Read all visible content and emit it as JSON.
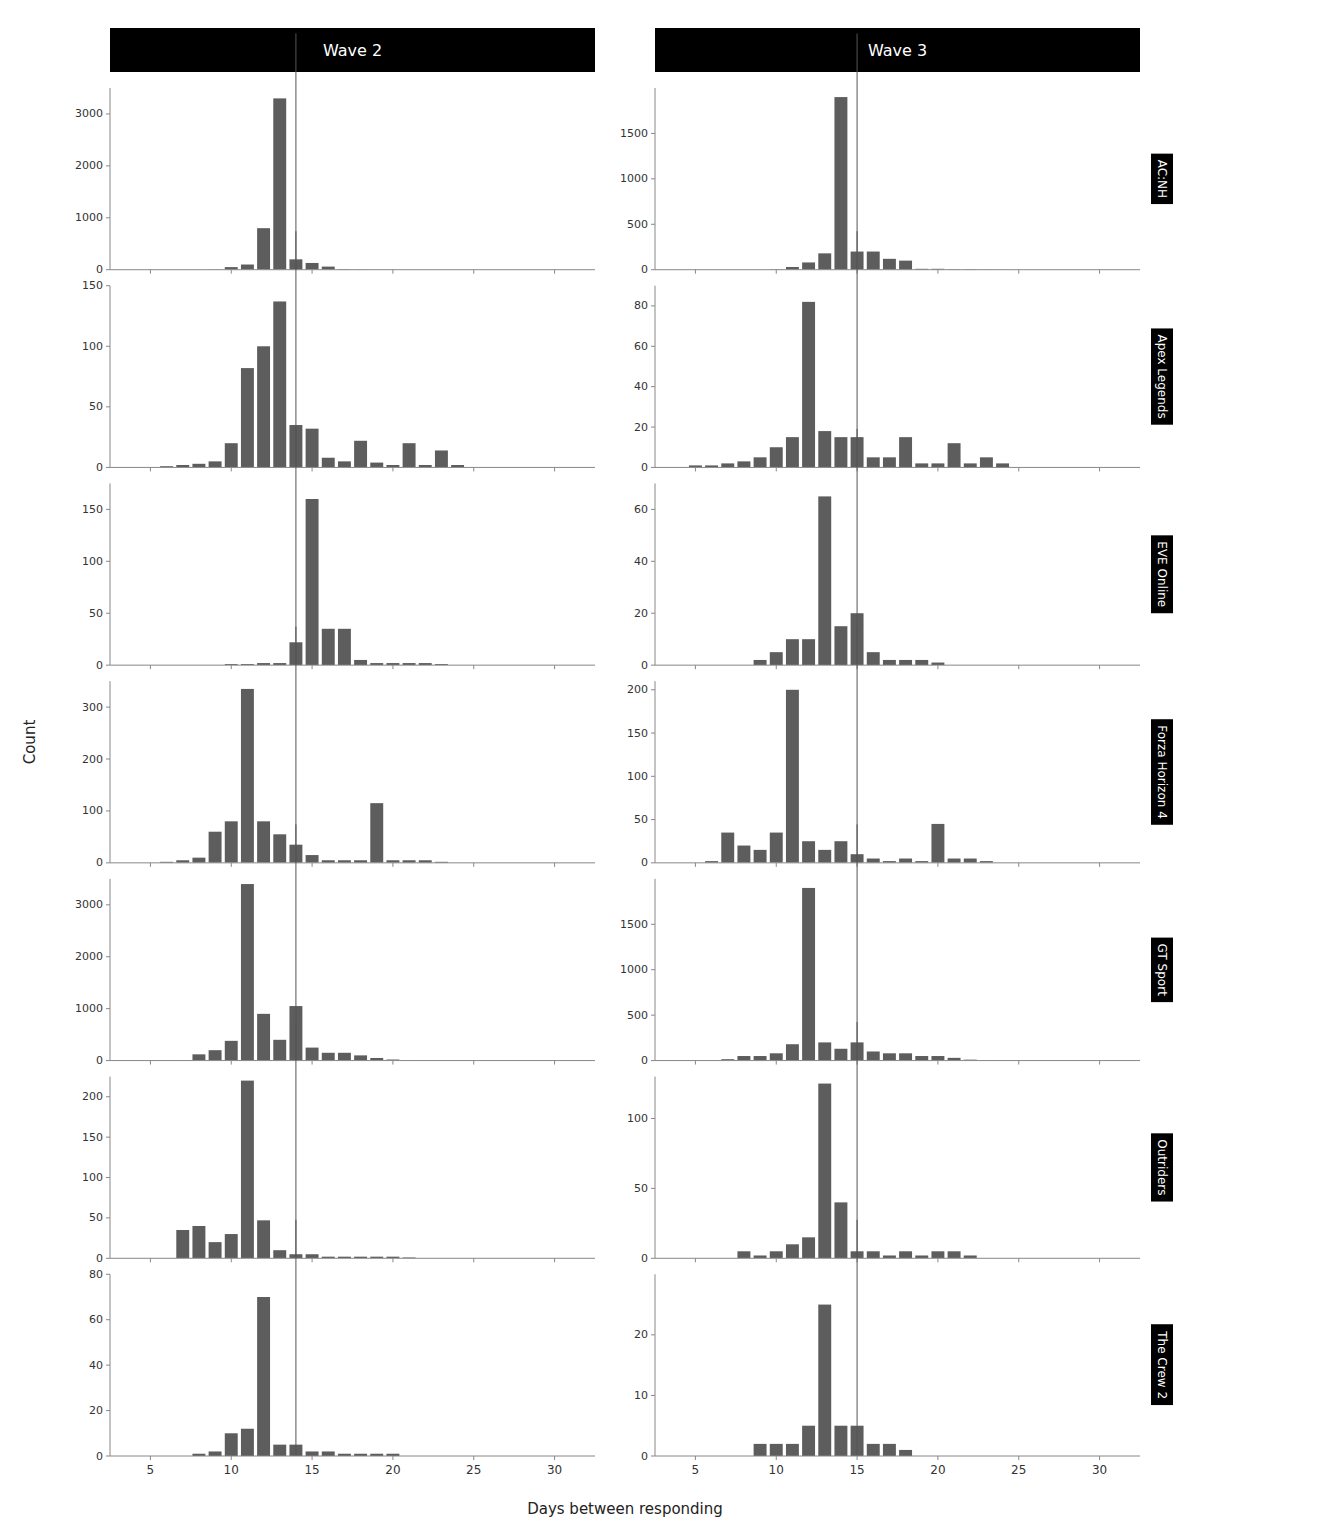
{
  "chart_data": [
    {
      "type": "bar",
      "title": "Wave 2",
      "xlabel": "Days between responding",
      "ylabel": "Count",
      "color": "#5d5d5d",
      "x": [
        9,
        10,
        11,
        12,
        13,
        14,
        15,
        16,
        17,
        18,
        19,
        20,
        21
      ],
      "values": [
        5,
        50,
        100,
        800,
        3300,
        200,
        130,
        60,
        10,
        5,
        2,
        1,
        0
      ],
      "xlim": [
        2.5,
        32.5
      ],
      "xticks": [
        5,
        10,
        15,
        20,
        25,
        30
      ],
      "ylim": [
        0,
        3500
      ],
      "yticks": [
        0,
        1000,
        2000,
        3000
      ],
      "vline": 14,
      "tick_labels": "y"
    },
    {
      "type": "bar",
      "title": "Wave 3",
      "annotations": [
        {
          "text": "AC:NH"
        }
      ],
      "color": "#5d5d5d",
      "x": [
        10,
        11,
        12,
        13,
        14,
        15,
        16,
        17,
        18,
        19,
        20,
        21,
        22,
        23,
        24,
        25
      ],
      "values": [
        5,
        30,
        80,
        180,
        1900,
        200,
        200,
        120,
        100,
        10,
        10,
        5,
        5,
        2,
        1,
        0
      ],
      "xlim": [
        2.5,
        32.5
      ],
      "xticks": [
        5,
        10,
        15,
        20,
        25,
        30
      ],
      "ylim": [
        0,
        2000
      ],
      "yticks": [
        0,
        500,
        1000,
        1500
      ],
      "vline": 15,
      "tick_labels": "y"
    },
    {
      "type": "bar",
      "color": "#5d5d5d",
      "x": [
        6,
        7,
        8,
        9,
        10,
        11,
        12,
        13,
        14,
        15,
        16,
        17,
        18,
        19,
        20,
        21,
        22,
        23,
        24,
        25,
        26
      ],
      "values": [
        1,
        2,
        3,
        5,
        20,
        82,
        100,
        137,
        35,
        32,
        8,
        5,
        22,
        4,
        2,
        20,
        2,
        14,
        2,
        0,
        0
      ],
      "xlim": [
        2.5,
        32.5
      ],
      "xticks": [
        5,
        10,
        15,
        20,
        25,
        30
      ],
      "ylim": [
        0,
        150
      ],
      "yticks": [
        0,
        50,
        100,
        150
      ],
      "vline": 14,
      "tick_labels": "y"
    },
    {
      "type": "bar",
      "annotations": [
        {
          "text": "Apex Legends"
        }
      ],
      "color": "#5d5d5d",
      "x": [
        5,
        6,
        7,
        8,
        9,
        10,
        11,
        12,
        13,
        14,
        15,
        16,
        17,
        18,
        19,
        20,
        21,
        22,
        23,
        24,
        25
      ],
      "values": [
        1,
        1,
        2,
        3,
        5,
        10,
        15,
        82,
        18,
        15,
        15,
        5,
        5,
        15,
        2,
        2,
        12,
        2,
        5,
        2,
        0
      ],
      "xlim": [
        2.5,
        32.5
      ],
      "xticks": [
        5,
        10,
        15,
        20,
        25,
        30
      ],
      "ylim": [
        0,
        90
      ],
      "yticks": [
        0,
        20,
        40,
        60,
        80
      ],
      "vline": 15,
      "tick_labels": "y"
    },
    {
      "type": "bar",
      "color": "#5d5d5d",
      "x": [
        10,
        11,
        12,
        13,
        14,
        15,
        16,
        17,
        18,
        19,
        20,
        21,
        22,
        23
      ],
      "values": [
        1,
        1,
        2,
        2,
        22,
        160,
        35,
        35,
        5,
        2,
        2,
        2,
        2,
        1
      ],
      "xlim": [
        2.5,
        32.5
      ],
      "xticks": [
        5,
        10,
        15,
        20,
        25,
        30
      ],
      "ylim": [
        0,
        175
      ],
      "yticks": [
        0,
        50,
        100,
        150
      ],
      "vline": 14,
      "tick_labels": "y"
    },
    {
      "type": "bar",
      "annotations": [
        {
          "text": "EVE Online"
        }
      ],
      "color": "#5d5d5d",
      "x": [
        9,
        10,
        11,
        12,
        13,
        14,
        15,
        16,
        17,
        18,
        19,
        20,
        21
      ],
      "values": [
        2,
        5,
        10,
        10,
        65,
        15,
        20,
        5,
        2,
        2,
        2,
        1,
        0
      ],
      "xlim": [
        2.5,
        32.5
      ],
      "xticks": [
        5,
        10,
        15,
        20,
        25,
        30
      ],
      "ylim": [
        0,
        70
      ],
      "yticks": [
        0,
        20,
        40,
        60
      ],
      "vline": 15,
      "tick_labels": "y"
    },
    {
      "type": "bar",
      "color": "#5d5d5d",
      "x": [
        6,
        7,
        8,
        9,
        10,
        11,
        12,
        13,
        14,
        15,
        16,
        17,
        18,
        19,
        20,
        21,
        22,
        23,
        24,
        25
      ],
      "values": [
        2,
        5,
        10,
        60,
        80,
        335,
        80,
        55,
        35,
        15,
        5,
        5,
        5,
        115,
        5,
        5,
        5,
        2,
        0,
        0
      ],
      "xlim": [
        2.5,
        32.5
      ],
      "xticks": [
        5,
        10,
        15,
        20,
        25,
        30
      ],
      "ylim": [
        0,
        350
      ],
      "yticks": [
        0,
        100,
        200,
        300
      ],
      "vline": 14,
      "tick_labels": "y"
    },
    {
      "type": "bar",
      "annotations": [
        {
          "text": "Forza Horizon 4"
        }
      ],
      "color": "#5d5d5d",
      "x": [
        6,
        7,
        8,
        9,
        10,
        11,
        12,
        13,
        14,
        15,
        16,
        17,
        18,
        19,
        20,
        21,
        22,
        23,
        24,
        25
      ],
      "values": [
        2,
        35,
        20,
        15,
        35,
        200,
        25,
        15,
        25,
        10,
        5,
        2,
        5,
        2,
        45,
        5,
        5,
        2,
        0,
        0
      ],
      "xlim": [
        2.5,
        32.5
      ],
      "xticks": [
        5,
        10,
        15,
        20,
        25,
        30
      ],
      "ylim": [
        0,
        210
      ],
      "yticks": [
        0,
        50,
        100,
        150,
        200
      ],
      "vline": 15,
      "tick_labels": "y"
    },
    {
      "type": "bar",
      "color": "#5d5d5d",
      "x": [
        6,
        7,
        8,
        9,
        10,
        11,
        12,
        13,
        14,
        15,
        16,
        17,
        18,
        19,
        20,
        21,
        22,
        23,
        24,
        25
      ],
      "values": [
        5,
        10,
        120,
        200,
        380,
        3400,
        900,
        400,
        1050,
        250,
        150,
        150,
        100,
        50,
        20,
        10,
        5,
        5,
        2,
        2
      ],
      "xlim": [
        2.5,
        32.5
      ],
      "xticks": [
        5,
        10,
        15,
        20,
        25,
        30
      ],
      "ylim": [
        0,
        3500
      ],
      "yticks": [
        0,
        1000,
        2000,
        3000
      ],
      "vline": 14,
      "tick_labels": "y"
    },
    {
      "type": "bar",
      "annotations": [
        {
          "text": "GT Sport"
        }
      ],
      "color": "#5d5d5d",
      "x": [
        6,
        7,
        8,
        9,
        10,
        11,
        12,
        13,
        14,
        15,
        16,
        17,
        18,
        19,
        20,
        21,
        22,
        23,
        24,
        25
      ],
      "values": [
        5,
        15,
        50,
        50,
        80,
        180,
        1900,
        200,
        130,
        200,
        100,
        80,
        80,
        50,
        50,
        30,
        10,
        5,
        2,
        2
      ],
      "xlim": [
        2.5,
        32.5
      ],
      "xticks": [
        5,
        10,
        15,
        20,
        25,
        30
      ],
      "ylim": [
        0,
        2000
      ],
      "yticks": [
        0,
        500,
        1000,
        1500
      ],
      "vline": 15,
      "tick_labels": "y"
    },
    {
      "type": "bar",
      "color": "#5d5d5d",
      "x": [
        7,
        8,
        9,
        10,
        11,
        12,
        13,
        14,
        15,
        16,
        17,
        18,
        19,
        20,
        21
      ],
      "values": [
        35,
        40,
        20,
        30,
        220,
        47,
        10,
        5,
        5,
        2,
        2,
        2,
        2,
        2,
        1
      ],
      "xlim": [
        2.5,
        32.5
      ],
      "xticks": [
        5,
        10,
        15,
        20,
        25,
        30
      ],
      "ylim": [
        0,
        225
      ],
      "yticks": [
        0,
        50,
        100,
        150,
        200
      ],
      "vline": 14,
      "tick_labels": "y"
    },
    {
      "type": "bar",
      "annotations": [
        {
          "text": "Outriders"
        }
      ],
      "color": "#5d5d5d",
      "x": [
        8,
        9,
        10,
        11,
        12,
        13,
        14,
        15,
        16,
        17,
        18,
        19,
        20,
        21,
        22,
        23
      ],
      "values": [
        5,
        2,
        5,
        10,
        15,
        125,
        40,
        5,
        5,
        2,
        5,
        2,
        5,
        5,
        2,
        0
      ],
      "xlim": [
        2.5,
        32.5
      ],
      "xticks": [
        5,
        10,
        15,
        20,
        25,
        30
      ],
      "ylim": [
        0,
        130
      ],
      "yticks": [
        0,
        50,
        100
      ],
      "vline": 15,
      "tick_labels": "y"
    },
    {
      "type": "bar",
      "color": "#5d5d5d",
      "x": [
        8,
        9,
        10,
        11,
        12,
        13,
        14,
        15,
        16,
        17,
        18,
        19,
        20,
        21
      ],
      "values": [
        1,
        2,
        10,
        12,
        70,
        5,
        5,
        2,
        2,
        1,
        1,
        1,
        1,
        0
      ],
      "xlim": [
        2.5,
        32.5
      ],
      "xticks": [
        5,
        10,
        15,
        20,
        25,
        30
      ],
      "ylim": [
        0,
        80
      ],
      "yticks": [
        0,
        20,
        40,
        60,
        80
      ],
      "vline": 14
    },
    {
      "type": "bar",
      "annotations": [
        {
          "text": "The Crew 2"
        }
      ],
      "color": "#5d5d5d",
      "x": [
        9,
        10,
        11,
        12,
        13,
        14,
        15,
        16,
        17,
        18,
        19,
        20,
        21,
        22,
        23
      ],
      "values": [
        2,
        2,
        2,
        5,
        25,
        5,
        5,
        2,
        2,
        1,
        0,
        0,
        0,
        0,
        0
      ],
      "xlim": [
        2.5,
        32.5
      ],
      "xticks": [
        5,
        10,
        15,
        20,
        25,
        30
      ],
      "ylim": [
        0,
        30
      ],
      "yticks": [
        0,
        10,
        20
      ],
      "vline": 15
    }
  ]
}
